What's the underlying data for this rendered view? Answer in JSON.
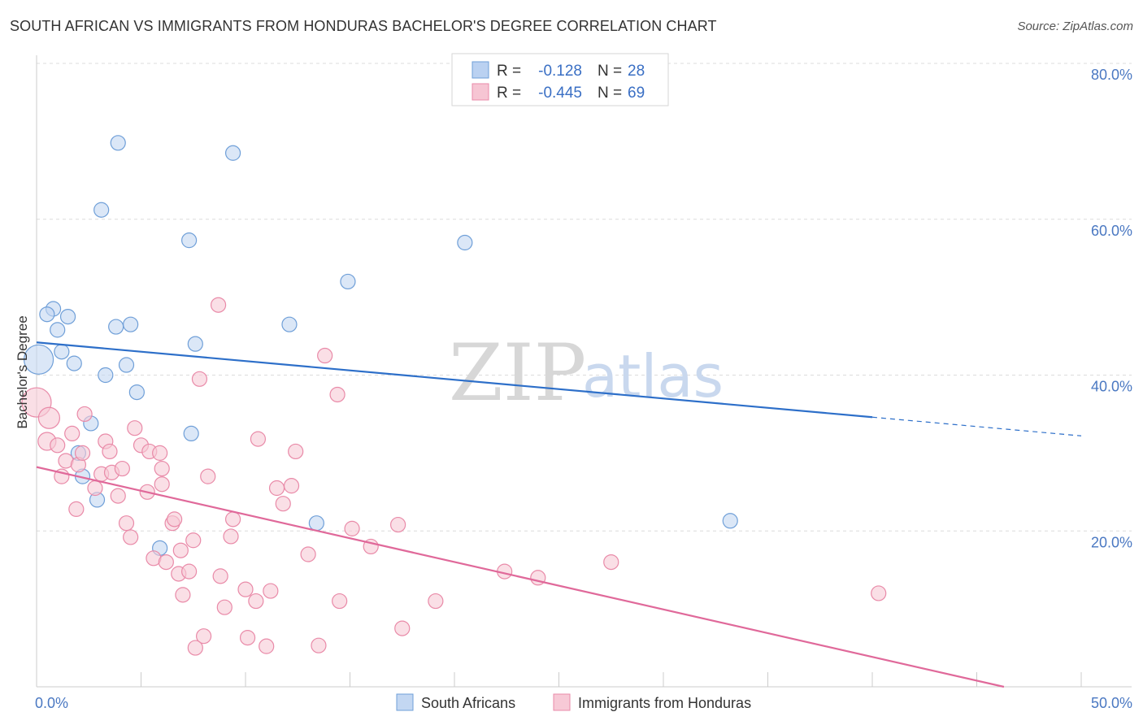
{
  "header": {
    "title": "SOUTH AFRICAN VS IMMIGRANTS FROM HONDURAS BACHELOR'S DEGREE CORRELATION CHART",
    "source": "Source: ZipAtlas.com"
  },
  "watermark": {
    "zip": "ZIP",
    "atlas": "atlas"
  },
  "legend_top": {
    "rows": [
      {
        "r_label": "R =",
        "r_value": "-0.128",
        "n_label": "N =",
        "n_value": "28",
        "color": "#a9c6ee"
      },
      {
        "r_label": "R =",
        "r_value": "-0.445",
        "n_label": "N =",
        "n_value": "69",
        "color": "#f4b6c8"
      }
    ]
  },
  "chart_data": {
    "type": "scatter",
    "title": "SOUTH AFRICAN VS IMMIGRANTS FROM HONDURAS BACHELOR'S DEGREE CORRELATION CHART",
    "xlabel": "",
    "ylabel": "Bachelor's Degree",
    "xlim": [
      0,
      50
    ],
    "ylim": [
      0,
      80
    ],
    "x_tick_labels": [
      "0.0%",
      "50.0%"
    ],
    "y_ticks": [
      {
        "value": 20,
        "label": "20.0%"
      },
      {
        "value": 40,
        "label": "40.0%"
      },
      {
        "value": 60,
        "label": "60.0%"
      },
      {
        "value": 80,
        "label": "80.0%"
      }
    ],
    "grid": true,
    "legend_position": "bottom",
    "series": [
      {
        "name": "South Africans",
        "color": "#6f9fd8",
        "fill": "#c3d7f2",
        "trend": {
          "x0": 0,
          "y0": 44.2,
          "x1": 40,
          "y1": 34.6,
          "dash_to_x": 50,
          "dash_to_y": 32.2
        },
        "points": [
          [
            0.8,
            48.5
          ],
          [
            0.5,
            47.8
          ],
          [
            1.5,
            47.5
          ],
          [
            1.0,
            45.8
          ],
          [
            3.8,
            46.2
          ],
          [
            4.5,
            46.5
          ],
          [
            1.2,
            43.0
          ],
          [
            0.1,
            42.0
          ],
          [
            1.8,
            41.5
          ],
          [
            4.3,
            41.3
          ],
          [
            3.3,
            40.0
          ],
          [
            4.8,
            37.8
          ],
          [
            2.6,
            33.8
          ],
          [
            7.4,
            32.5
          ],
          [
            2.0,
            30.0
          ],
          [
            2.2,
            27.0
          ],
          [
            2.9,
            24.0
          ],
          [
            5.9,
            17.8
          ],
          [
            3.9,
            69.8
          ],
          [
            9.4,
            68.5
          ],
          [
            3.1,
            61.2
          ],
          [
            7.3,
            57.3
          ],
          [
            20.5,
            57.0
          ],
          [
            14.9,
            52.0
          ],
          [
            12.1,
            46.5
          ],
          [
            7.6,
            44.0
          ],
          [
            13.4,
            21.0
          ],
          [
            33.2,
            21.3
          ]
        ],
        "sizes": [
          9,
          9,
          9,
          9,
          9,
          9,
          9,
          18,
          9,
          9,
          9,
          9,
          9,
          9,
          9,
          9,
          9,
          9,
          9,
          9,
          9,
          9,
          9,
          9,
          9,
          9,
          9,
          9
        ]
      },
      {
        "name": "Immigrants from Honduras",
        "color": "#e98aa8",
        "fill": "#f7c9d6",
        "trend": {
          "x0": 0,
          "y0": 28.2,
          "x1": 46.3,
          "y1": 0
        },
        "points": [
          [
            0.0,
            36.5
          ],
          [
            0.6,
            34.5
          ],
          [
            0.5,
            31.5
          ],
          [
            1.0,
            31.0
          ],
          [
            1.2,
            27.0
          ],
          [
            1.4,
            29.0
          ],
          [
            2.0,
            28.5
          ],
          [
            2.2,
            30.0
          ],
          [
            2.3,
            35.0
          ],
          [
            1.7,
            32.5
          ],
          [
            2.8,
            25.5
          ],
          [
            3.3,
            31.5
          ],
          [
            3.1,
            27.3
          ],
          [
            3.6,
            27.5
          ],
          [
            3.9,
            24.5
          ],
          [
            4.1,
            28.0
          ],
          [
            4.7,
            33.2
          ],
          [
            5.0,
            31.0
          ],
          [
            5.4,
            30.2
          ],
          [
            5.9,
            30.0
          ],
          [
            6.0,
            28.0
          ],
          [
            6.0,
            26.0
          ],
          [
            4.3,
            21.0
          ],
          [
            4.5,
            19.2
          ],
          [
            5.6,
            16.5
          ],
          [
            6.2,
            16.0
          ],
          [
            6.5,
            21.0
          ],
          [
            6.6,
            21.5
          ],
          [
            6.8,
            14.5
          ],
          [
            7.0,
            11.8
          ],
          [
            7.3,
            14.8
          ],
          [
            7.5,
            18.8
          ],
          [
            7.8,
            39.5
          ],
          [
            8.2,
            27.0
          ],
          [
            8.7,
            49.0
          ],
          [
            8.8,
            14.2
          ],
          [
            9.0,
            10.2
          ],
          [
            9.3,
            19.3
          ],
          [
            9.4,
            21.5
          ],
          [
            10.0,
            12.5
          ],
          [
            10.5,
            11.0
          ],
          [
            10.6,
            31.8
          ],
          [
            11.2,
            12.3
          ],
          [
            11.5,
            25.5
          ],
          [
            11.8,
            23.5
          ],
          [
            12.2,
            25.8
          ],
          [
            12.4,
            30.2
          ],
          [
            13.0,
            17.0
          ],
          [
            13.8,
            42.5
          ],
          [
            14.4,
            37.5
          ],
          [
            14.5,
            11.0
          ],
          [
            15.1,
            20.3
          ],
          [
            16.0,
            18.0
          ],
          [
            17.3,
            20.8
          ],
          [
            17.5,
            7.5
          ],
          [
            19.1,
            11.0
          ],
          [
            22.4,
            14.8
          ],
          [
            24.0,
            14.0
          ],
          [
            27.5,
            16.0
          ],
          [
            40.3,
            12.0
          ],
          [
            8.0,
            6.5
          ],
          [
            7.6,
            5.0
          ],
          [
            10.1,
            6.3
          ],
          [
            11.0,
            5.2
          ],
          [
            13.5,
            5.3
          ],
          [
            6.9,
            17.5
          ],
          [
            3.5,
            30.2
          ],
          [
            1.9,
            22.8
          ],
          [
            5.3,
            25.0
          ]
        ],
        "sizes": [
          18,
          13,
          11,
          9,
          9,
          9,
          9,
          9,
          9,
          9,
          9,
          9,
          9,
          9,
          9,
          9,
          9,
          9,
          9,
          9,
          9,
          9,
          9,
          9,
          9,
          9,
          9,
          9,
          9,
          9,
          9,
          9,
          9,
          9,
          9,
          9,
          9,
          9,
          9,
          9,
          9,
          9,
          9,
          9,
          9,
          9,
          9,
          9,
          9,
          9,
          9,
          9,
          9,
          9,
          9,
          9,
          9,
          9,
          9,
          9,
          9,
          9,
          9,
          9,
          9,
          9,
          9,
          9,
          9
        ]
      }
    ]
  },
  "legend_bottom": {
    "items": [
      {
        "label": "South Africans",
        "color": "#c3d7f2",
        "stroke": "#6f9fd8"
      },
      {
        "label": "Immigrants from Honduras",
        "color": "#f7c9d6",
        "stroke": "#e98aa8"
      }
    ]
  }
}
